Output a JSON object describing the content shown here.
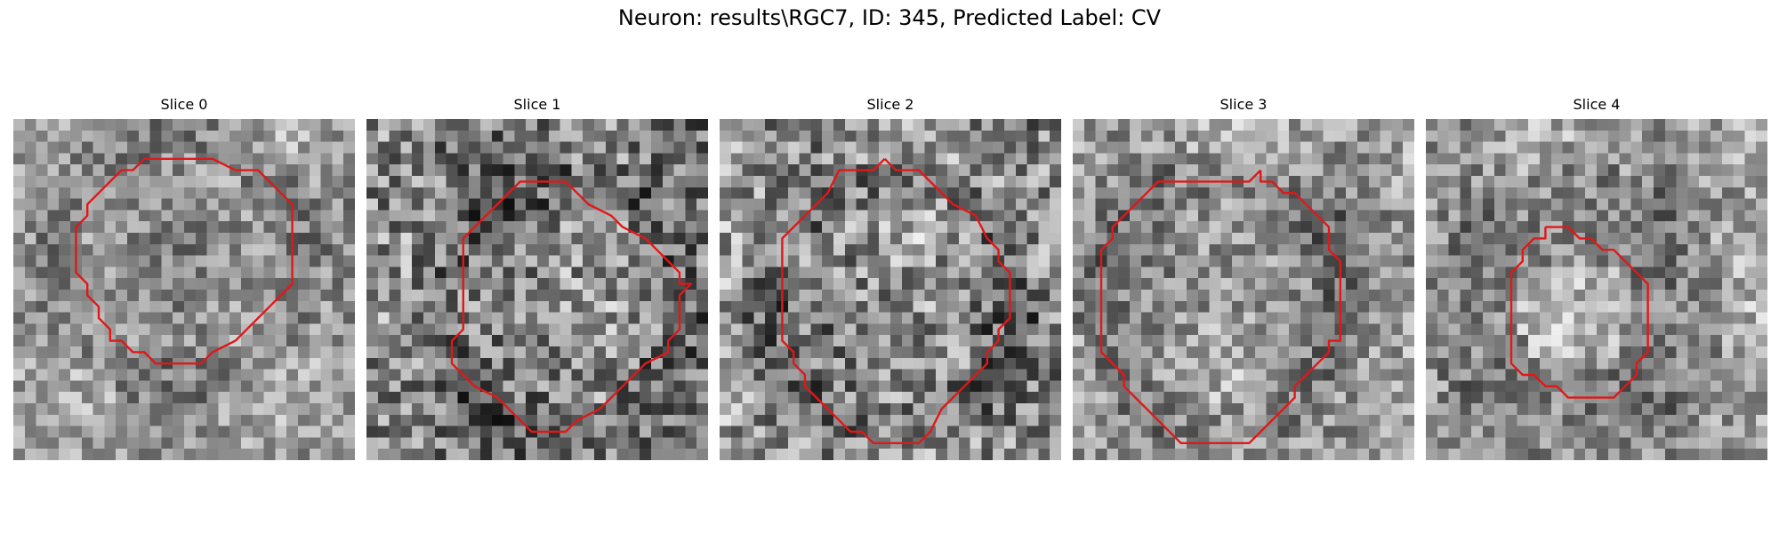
{
  "figure": {
    "title": "Neuron: results\\RGC7, ID: 345, Predicted Label: CV",
    "contour_color": "#e01818",
    "panels": [
      {
        "label": "Slice 0",
        "grid_size": 30,
        "base_gray": 150,
        "contrast": 55,
        "contour": [
          [
            15,
            3
          ],
          [
            17,
            3
          ],
          [
            19,
            4
          ],
          [
            21,
            4
          ],
          [
            23,
            6
          ],
          [
            24,
            7
          ],
          [
            24,
            8
          ],
          [
            24,
            9
          ],
          [
            24,
            10
          ],
          [
            24,
            11
          ],
          [
            24,
            12
          ],
          [
            24,
            13
          ],
          [
            24,
            14
          ],
          [
            23,
            15
          ],
          [
            22,
            16
          ],
          [
            21,
            17
          ],
          [
            20,
            18
          ],
          [
            19,
            19
          ],
          [
            17,
            20
          ],
          [
            16,
            21
          ],
          [
            14,
            21
          ],
          [
            13,
            21
          ],
          [
            12,
            21
          ],
          [
            11,
            20
          ],
          [
            10,
            20
          ],
          [
            9,
            19
          ],
          [
            8,
            19
          ],
          [
            8,
            18
          ],
          [
            7,
            17
          ],
          [
            7,
            16
          ],
          [
            6,
            15
          ],
          [
            6,
            14
          ],
          [
            5,
            13
          ],
          [
            5,
            12
          ],
          [
            5,
            11
          ],
          [
            5,
            10
          ],
          [
            5,
            9
          ],
          [
            6,
            8
          ],
          [
            6,
            7
          ],
          [
            7,
            6
          ],
          [
            8,
            5
          ],
          [
            9,
            4
          ],
          [
            10,
            4
          ],
          [
            11,
            3
          ],
          [
            13,
            3
          ],
          [
            15,
            3
          ]
        ]
      },
      {
        "label": "Slice 1",
        "grid_size": 30,
        "base_gray": 130,
        "contrast": 80,
        "contour": [
          [
            14,
            5
          ],
          [
            17,
            5
          ],
          [
            18,
            6
          ],
          [
            19,
            7
          ],
          [
            21,
            8
          ],
          [
            22,
            9
          ],
          [
            24,
            10
          ],
          [
            25,
            11
          ],
          [
            26,
            12
          ],
          [
            27,
            13
          ],
          [
            27,
            14
          ],
          [
            28,
            14
          ],
          [
            27,
            15
          ],
          [
            27,
            16
          ],
          [
            27,
            17
          ],
          [
            27,
            18
          ],
          [
            26,
            19
          ],
          [
            26,
            20
          ],
          [
            24,
            21
          ],
          [
            23,
            22
          ],
          [
            22,
            23
          ],
          [
            21,
            24
          ],
          [
            20,
            25
          ],
          [
            18,
            26
          ],
          [
            17,
            27
          ],
          [
            16,
            27
          ],
          [
            15,
            27
          ],
          [
            14,
            27
          ],
          [
            13,
            26
          ],
          [
            12,
            25
          ],
          [
            11,
            24
          ],
          [
            9,
            23
          ],
          [
            8,
            22
          ],
          [
            7,
            21
          ],
          [
            7,
            20
          ],
          [
            7,
            19
          ],
          [
            8,
            18
          ],
          [
            8,
            17
          ],
          [
            8,
            16
          ],
          [
            8,
            15
          ],
          [
            8,
            14
          ],
          [
            8,
            13
          ],
          [
            8,
            12
          ],
          [
            8,
            11
          ],
          [
            8,
            10
          ],
          [
            9,
            9
          ],
          [
            10,
            8
          ],
          [
            11,
            7
          ],
          [
            12,
            6
          ],
          [
            13,
            5
          ],
          [
            14,
            5
          ]
        ]
      },
      {
        "label": "Slice 2",
        "grid_size": 30,
        "base_gray": 140,
        "contrast": 80,
        "contour": [
          [
            14,
            3
          ],
          [
            15,
            4
          ],
          [
            17,
            4
          ],
          [
            18,
            5
          ],
          [
            19,
            6
          ],
          [
            20,
            7
          ],
          [
            22,
            8
          ],
          [
            23,
            10
          ],
          [
            24,
            11
          ],
          [
            24,
            12
          ],
          [
            25,
            13
          ],
          [
            25,
            14
          ],
          [
            25,
            15
          ],
          [
            25,
            16
          ],
          [
            25,
            17
          ],
          [
            24,
            18
          ],
          [
            24,
            19
          ],
          [
            23,
            20
          ],
          [
            23,
            21
          ],
          [
            22,
            22
          ],
          [
            21,
            23
          ],
          [
            20,
            24
          ],
          [
            19,
            25
          ],
          [
            18,
            27
          ],
          [
            17,
            28
          ],
          [
            16,
            28
          ],
          [
            15,
            28
          ],
          [
            14,
            28
          ],
          [
            13,
            28
          ],
          [
            12,
            27
          ],
          [
            11,
            27
          ],
          [
            10,
            26
          ],
          [
            9,
            25
          ],
          [
            8,
            24
          ],
          [
            7,
            23
          ],
          [
            7,
            22
          ],
          [
            6,
            21
          ],
          [
            6,
            20
          ],
          [
            5,
            19
          ],
          [
            5,
            18
          ],
          [
            5,
            17
          ],
          [
            5,
            16
          ],
          [
            5,
            15
          ],
          [
            5,
            14
          ],
          [
            5,
            13
          ],
          [
            5,
            12
          ],
          [
            5,
            11
          ],
          [
            5,
            10
          ],
          [
            6,
            9
          ],
          [
            7,
            8
          ],
          [
            8,
            7
          ],
          [
            9,
            6
          ],
          [
            10,
            4
          ],
          [
            12,
            4
          ],
          [
            13,
            4
          ],
          [
            14,
            3
          ]
        ]
      },
      {
        "label": "Slice 3",
        "grid_size": 30,
        "base_gray": 150,
        "contrast": 60,
        "contour": [
          [
            16,
            4
          ],
          [
            16,
            5
          ],
          [
            17,
            5
          ],
          [
            18,
            6
          ],
          [
            19,
            6
          ],
          [
            20,
            7
          ],
          [
            21,
            8
          ],
          [
            22,
            9
          ],
          [
            22,
            10
          ],
          [
            22,
            11
          ],
          [
            23,
            12
          ],
          [
            23,
            13
          ],
          [
            23,
            14
          ],
          [
            23,
            15
          ],
          [
            23,
            16
          ],
          [
            23,
            17
          ],
          [
            23,
            18
          ],
          [
            23,
            19
          ],
          [
            22,
            19
          ],
          [
            22,
            20
          ],
          [
            21,
            21
          ],
          [
            20,
            22
          ],
          [
            19,
            23
          ],
          [
            19,
            24
          ],
          [
            18,
            25
          ],
          [
            17,
            26
          ],
          [
            16,
            27
          ],
          [
            15,
            28
          ],
          [
            14,
            28
          ],
          [
            13,
            28
          ],
          [
            12,
            28
          ],
          [
            11,
            28
          ],
          [
            10,
            28
          ],
          [
            9,
            28
          ],
          [
            8,
            27
          ],
          [
            7,
            26
          ],
          [
            6,
            25
          ],
          [
            5,
            24
          ],
          [
            4,
            23
          ],
          [
            4,
            22
          ],
          [
            3,
            21
          ],
          [
            2,
            20
          ],
          [
            2,
            19
          ],
          [
            2,
            18
          ],
          [
            2,
            17
          ],
          [
            2,
            16
          ],
          [
            2,
            15
          ],
          [
            2,
            14
          ],
          [
            2,
            13
          ],
          [
            2,
            12
          ],
          [
            2,
            11
          ],
          [
            3,
            10
          ],
          [
            3,
            9
          ],
          [
            4,
            8
          ],
          [
            5,
            7
          ],
          [
            6,
            6
          ],
          [
            7,
            5
          ],
          [
            8,
            5
          ],
          [
            9,
            5
          ],
          [
            10,
            5
          ],
          [
            11,
            5
          ],
          [
            12,
            5
          ],
          [
            13,
            5
          ],
          [
            14,
            5
          ],
          [
            15,
            5
          ],
          [
            16,
            4
          ]
        ]
      },
      {
        "label": "Slice 4",
        "grid_size": 30,
        "base_gray": 160,
        "contrast": 60,
        "contour": [
          [
            10,
            9
          ],
          [
            11,
            9
          ],
          [
            12,
            9
          ],
          [
            13,
            10
          ],
          [
            14,
            10
          ],
          [
            15,
            11
          ],
          [
            16,
            11
          ],
          [
            17,
            12
          ],
          [
            18,
            13
          ],
          [
            19,
            14
          ],
          [
            19,
            15
          ],
          [
            19,
            16
          ],
          [
            19,
            17
          ],
          [
            19,
            18
          ],
          [
            19,
            19
          ],
          [
            19,
            20
          ],
          [
            18,
            21
          ],
          [
            18,
            22
          ],
          [
            17,
            23
          ],
          [
            16,
            24
          ],
          [
            15,
            24
          ],
          [
            14,
            24
          ],
          [
            13,
            24
          ],
          [
            12,
            24
          ],
          [
            11,
            23
          ],
          [
            10,
            23
          ],
          [
            9,
            22
          ],
          [
            8,
            22
          ],
          [
            7,
            21
          ],
          [
            7,
            20
          ],
          [
            7,
            19
          ],
          [
            7,
            18
          ],
          [
            7,
            17
          ],
          [
            7,
            16
          ],
          [
            7,
            15
          ],
          [
            7,
            14
          ],
          [
            7,
            13
          ],
          [
            8,
            12
          ],
          [
            8,
            11
          ],
          [
            9,
            10
          ],
          [
            10,
            10
          ],
          [
            10,
            9
          ]
        ]
      }
    ]
  }
}
